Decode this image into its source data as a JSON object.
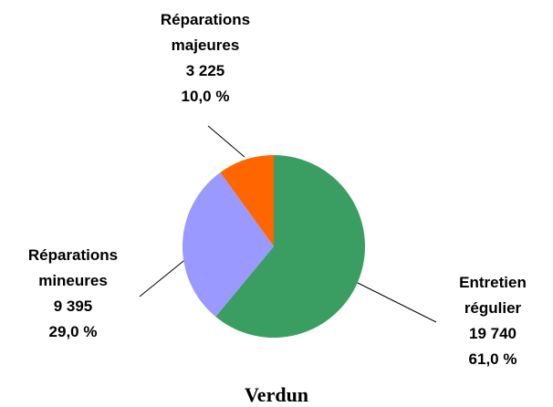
{
  "chart_data": {
    "type": "pie",
    "title": "Verdun",
    "categories": [
      "Entretien régulier",
      "Réparations mineures",
      "Réparations majeures"
    ],
    "values": [
      19740,
      9395,
      3225
    ],
    "value_labels": [
      "19 740",
      "9 395",
      "3 225"
    ],
    "percentages": [
      61.0,
      29.0,
      10.0
    ],
    "percentage_labels": [
      "61,0 %",
      "29,0 %",
      "10,0 %"
    ],
    "colors": [
      "#3a9e63",
      "#9999ff",
      "#ff6600"
    ]
  }
}
